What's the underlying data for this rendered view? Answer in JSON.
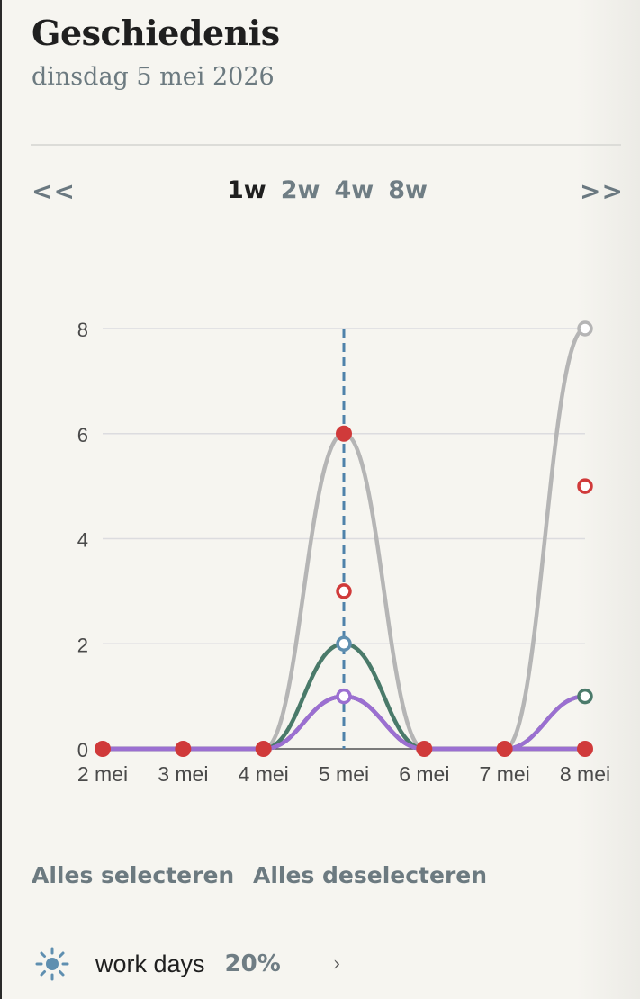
{
  "header": {
    "title": "Geschiedenis",
    "date": "dinsdag 5 mei 2026"
  },
  "nav": {
    "prev": "<<",
    "next": ">>",
    "ranges": [
      {
        "label": "1w",
        "active": true
      },
      {
        "label": "2w",
        "active": false
      },
      {
        "label": "4w",
        "active": false
      },
      {
        "label": "8w",
        "active": false
      }
    ]
  },
  "chart_data": {
    "type": "line",
    "title": "",
    "xlabel": "",
    "ylabel": "",
    "categories": [
      "2 mei",
      "3 mei",
      "4 mei",
      "5 mei",
      "6 mei",
      "7 mei",
      "8 mei"
    ],
    "ylim": [
      0,
      8
    ],
    "yticks": [
      0,
      2,
      4,
      6,
      8
    ],
    "grid": true,
    "today": "5 mei",
    "series": [
      {
        "color": "#b5b5b5",
        "values": [
          0,
          0,
          0,
          6,
          0,
          0,
          8
        ]
      },
      {
        "color": "#4a7a6a",
        "values": [
          0,
          0,
          0,
          2,
          0,
          0,
          1
        ]
      },
      {
        "color": "#262626",
        "values": [
          0,
          0,
          0,
          1,
          0,
          0,
          0
        ]
      },
      {
        "color": "#9b6fd1",
        "values": [
          0,
          0,
          0,
          1,
          0,
          0,
          1
        ]
      },
      {
        "color": "#9b6fd1",
        "values": [
          0,
          0,
          0,
          1,
          0,
          0,
          0
        ]
      }
    ],
    "markers": [
      {
        "x": "2 mei",
        "y": 0,
        "color": "#d03a3a",
        "filled": true
      },
      {
        "x": "3 mei",
        "y": 0,
        "color": "#d03a3a",
        "filled": true
      },
      {
        "x": "4 mei",
        "y": 0,
        "color": "#d03a3a",
        "filled": true
      },
      {
        "x": "5 mei",
        "y": 6,
        "color": "#d03a3a",
        "filled": true
      },
      {
        "x": "5 mei",
        "y": 3,
        "color": "#d03a3a",
        "filled": false
      },
      {
        "x": "5 mei",
        "y": 2,
        "color": "#5f8fb0",
        "filled": false
      },
      {
        "x": "5 mei",
        "y": 1,
        "color": "#9b6fd1",
        "filled": false
      },
      {
        "x": "6 mei",
        "y": 0,
        "color": "#d03a3a",
        "filled": true
      },
      {
        "x": "7 mei",
        "y": 0,
        "color": "#d03a3a",
        "filled": true
      },
      {
        "x": "8 mei",
        "y": 8,
        "color": "#b5b5b5",
        "filled": false
      },
      {
        "x": "8 mei",
        "y": 5,
        "color": "#d03a3a",
        "filled": false
      },
      {
        "x": "8 mei",
        "y": 1,
        "color": "#4a7a6a",
        "filled": false
      },
      {
        "x": "8 mei",
        "y": 0,
        "color": "#d03a3a",
        "filled": true
      }
    ]
  },
  "actions": {
    "select_all": "Alles selecteren",
    "deselect_all": "Alles deselecteren"
  },
  "items": [
    {
      "icon": "sun-icon",
      "icon_color": "#5f8fb0",
      "label": "work days",
      "percent": "20%"
    }
  ]
}
